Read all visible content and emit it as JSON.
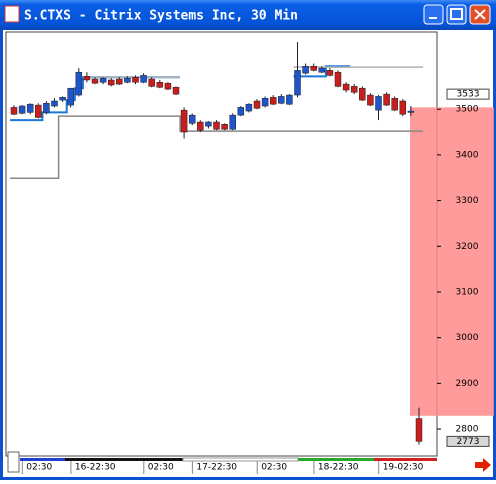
{
  "chart_data": {
    "type": "candlestick",
    "title": "S.CTXS - Citrix Systems Inc, 30 Min",
    "categories": [
      null,
      null,
      null,
      "02:30",
      null,
      null,
      null,
      null,
      null,
      "16-22:30",
      null,
      null,
      null,
      null,
      null,
      null,
      null,
      null,
      "02:30",
      null,
      null,
      null,
      null,
      null,
      "17-22:30",
      null,
      null,
      null,
      null,
      null,
      null,
      null,
      "02:30",
      null,
      null,
      null,
      null,
      null,
      null,
      "18-22:30",
      null,
      null,
      null,
      null,
      null,
      null,
      null,
      "19-02:30",
      null,
      null,
      null
    ],
    "ohlc": [
      [
        3504,
        3509,
        3487,
        3489
      ],
      [
        3491,
        3509,
        3489,
        3507
      ],
      [
        3493,
        3513,
        3489,
        3511
      ],
      [
        3509,
        3513,
        3480,
        3482
      ],
      [
        3493,
        3518,
        3489,
        3513
      ],
      [
        3507,
        3524,
        3504,
        3518
      ],
      [
        3520,
        3528,
        3516,
        3526
      ],
      [
        3509,
        3546,
        3504,
        3546
      ],
      [
        3531,
        3590,
        3528,
        3581
      ],
      [
        3572,
        3581,
        3559,
        3564
      ],
      [
        3566,
        3570,
        3555,
        3557
      ],
      [
        3559,
        3570,
        3555,
        3568
      ],
      [
        3564,
        3568,
        3550,
        3553
      ],
      [
        3566,
        3570,
        3553,
        3555
      ],
      [
        3559,
        3572,
        3557,
        3568
      ],
      [
        3570,
        3574,
        3555,
        3559
      ],
      [
        3559,
        3579,
        3557,
        3574
      ],
      [
        3566,
        3570,
        3548,
        3550
      ],
      [
        3559,
        3564,
        3546,
        3548
      ],
      [
        3557,
        3559,
        3542,
        3544
      ],
      [
        3548,
        3550,
        3531,
        3533
      ],
      [
        3498,
        3504,
        3436,
        3450
      ],
      [
        3469,
        3491,
        3465,
        3487
      ],
      [
        3472,
        3476,
        3450,
        3454
      ],
      [
        3463,
        3474,
        3458,
        3472
      ],
      [
        3472,
        3476,
        3454,
        3456
      ],
      [
        3467,
        3469,
        3454,
        3456
      ],
      [
        3456,
        3491,
        3454,
        3487
      ],
      [
        3487,
        3507,
        3485,
        3504
      ],
      [
        3496,
        3513,
        3493,
        3511
      ],
      [
        3518,
        3522,
        3500,
        3502
      ],
      [
        3507,
        3528,
        3504,
        3524
      ],
      [
        3526,
        3531,
        3509,
        3511
      ],
      [
        3513,
        3533,
        3511,
        3528
      ],
      [
        3511,
        3533,
        3509,
        3531
      ],
      [
        3531,
        3647,
        3526,
        3585
      ],
      [
        3579,
        3600,
        3576,
        3594
      ],
      [
        3594,
        3600,
        3583,
        3585
      ],
      [
        3581,
        3594,
        3579,
        3590
      ],
      [
        3585,
        3590,
        3572,
        3574
      ],
      [
        3581,
        3585,
        3548,
        3550
      ],
      [
        3555,
        3559,
        3537,
        3542
      ],
      [
        3550,
        3555,
        3533,
        3537
      ],
      [
        3546,
        3550,
        3518,
        3520
      ],
      [
        3531,
        3535,
        3507,
        3509
      ],
      [
        3498,
        3531,
        3476,
        3528
      ],
      [
        3533,
        3537,
        3507,
        3509
      ],
      [
        3524,
        3528,
        3496,
        3498
      ],
      [
        3518,
        3522,
        3485,
        3489
      ],
      [
        3493,
        3507,
        3485,
        3496
      ],
      [
        2823,
        2847,
        2766,
        2773
      ]
    ],
    "up_color": "#1f55c9",
    "down_color": "#c81e1e",
    "series": [
      {
        "color": "#1a78d8",
        "values": [
          3476,
          3476,
          3476,
          3476,
          3493,
          3493,
          3493,
          3520,
          3546,
          3570,
          3570,
          3570,
          3570,
          3570,
          3570,
          3570,
          3570,
          3570,
          3570,
          3570,
          3570,
          null,
          null,
          null,
          null,
          null,
          null,
          null,
          null,
          null,
          null,
          null,
          null,
          null,
          null,
          3572,
          3572,
          3572,
          3572,
          3594,
          3594,
          3594,
          null,
          null,
          null,
          null,
          null,
          null,
          null,
          null,
          null
        ]
      },
      {
        "color": "#888888",
        "values": [
          3349,
          3349,
          3349,
          3349,
          3349,
          3349,
          3485,
          3485,
          3485,
          3485,
          3485,
          3485,
          3485,
          3485,
          3485,
          3485,
          3485,
          3485,
          3485,
          3485,
          3485,
          3452,
          3452,
          3452,
          3452,
          3452,
          3452,
          3452,
          3452,
          3452,
          3452,
          3452,
          3452,
          3452,
          3452,
          3452,
          3452,
          3452,
          3452,
          3452,
          3452,
          3452,
          3452,
          3452,
          3452,
          3452,
          3452,
          3452,
          3452,
          3452,
          3452
        ]
      },
      {
        "color": "#b0b0b0",
        "values": [
          null,
          null,
          null,
          null,
          null,
          null,
          null,
          null,
          null,
          3570,
          3570,
          3570,
          3570,
          3570,
          3570,
          3570,
          3570,
          3570,
          3570,
          3570,
          3570,
          null,
          null,
          null,
          null,
          null,
          null,
          null,
          null,
          null,
          null,
          null,
          null,
          null,
          null,
          3592,
          3592,
          3592,
          3592,
          3592,
          3592,
          3592,
          3592,
          3592,
          3592,
          3592,
          3592,
          3592,
          3592,
          3592,
          3592
        ]
      }
    ],
    "zone": {
      "from": 3504,
      "to": 2829,
      "color": "#ff8a8a"
    },
    "price_labels": [
      3533,
      2773
    ],
    "ylim": [
      2741,
      3669
    ],
    "yticks": [
      2800,
      2900,
      3000,
      3100,
      3200,
      3300,
      3400,
      3500
    ]
  }
}
